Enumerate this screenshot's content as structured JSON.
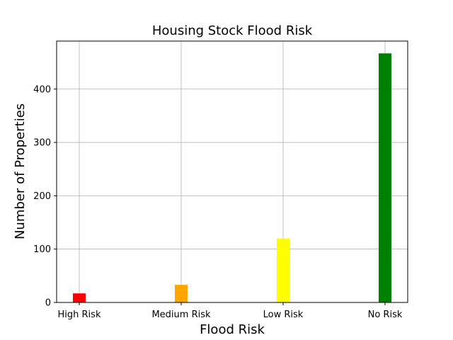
{
  "chart_data": {
    "type": "bar",
    "title": "Housing Stock Flood Risk",
    "xlabel": "Flood Risk",
    "ylabel": "Number of Properties",
    "categories": [
      "High Risk",
      "Medium Risk",
      "Low Risk",
      "No Risk"
    ],
    "values": [
      17,
      33,
      120,
      467
    ],
    "colors": [
      "#ff0000",
      "#ffa500",
      "#ffff00",
      "#008000"
    ],
    "ylim": [
      0,
      490
    ],
    "yticks": [
      0,
      100,
      200,
      300,
      400
    ],
    "ytick_labels": [
      "0",
      "100",
      "200",
      "300",
      "400"
    ],
    "grid": true
  }
}
